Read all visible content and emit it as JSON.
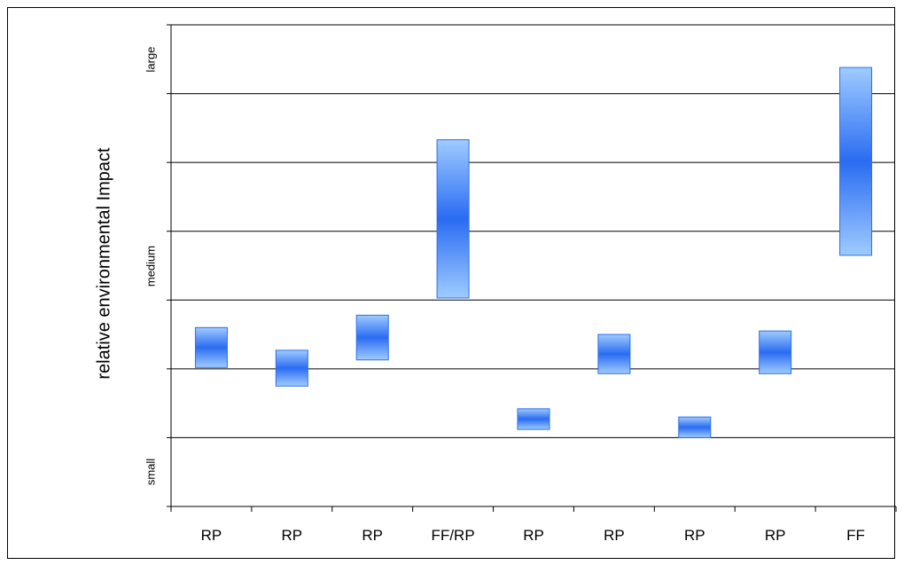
{
  "chart_data": {
    "type": "bar",
    "subtype": "floating-range",
    "title": "",
    "xlabel": "",
    "ylabel": "relative environmental Impact",
    "categories": [
      "RP",
      "RP",
      "RP",
      "FF/RP",
      "RP",
      "RP",
      "RP",
      "RP",
      "FF"
    ],
    "ranges": [
      [
        2.02,
        2.6
      ],
      [
        1.75,
        2.27
      ],
      [
        2.13,
        2.78
      ],
      [
        3.03,
        5.33
      ],
      [
        1.12,
        1.42
      ],
      [
        1.93,
        2.5
      ],
      [
        1.0,
        1.3
      ],
      [
        1.93,
        2.55
      ],
      [
        3.65,
        6.38
      ]
    ],
    "ylim": [
      0,
      7
    ],
    "y_tick_labels": [
      {
        "value": 0.5,
        "label": "small"
      },
      {
        "value": 3.5,
        "label": "medium"
      },
      {
        "value": 6.5,
        "label": "large"
      }
    ],
    "grid": true,
    "legend": "none",
    "colors": {
      "bar_edge": "#2f6fe6",
      "bar_light": "#9fcbff",
      "bar_dark": "#2a6cf2",
      "gridline": "#000000"
    }
  }
}
